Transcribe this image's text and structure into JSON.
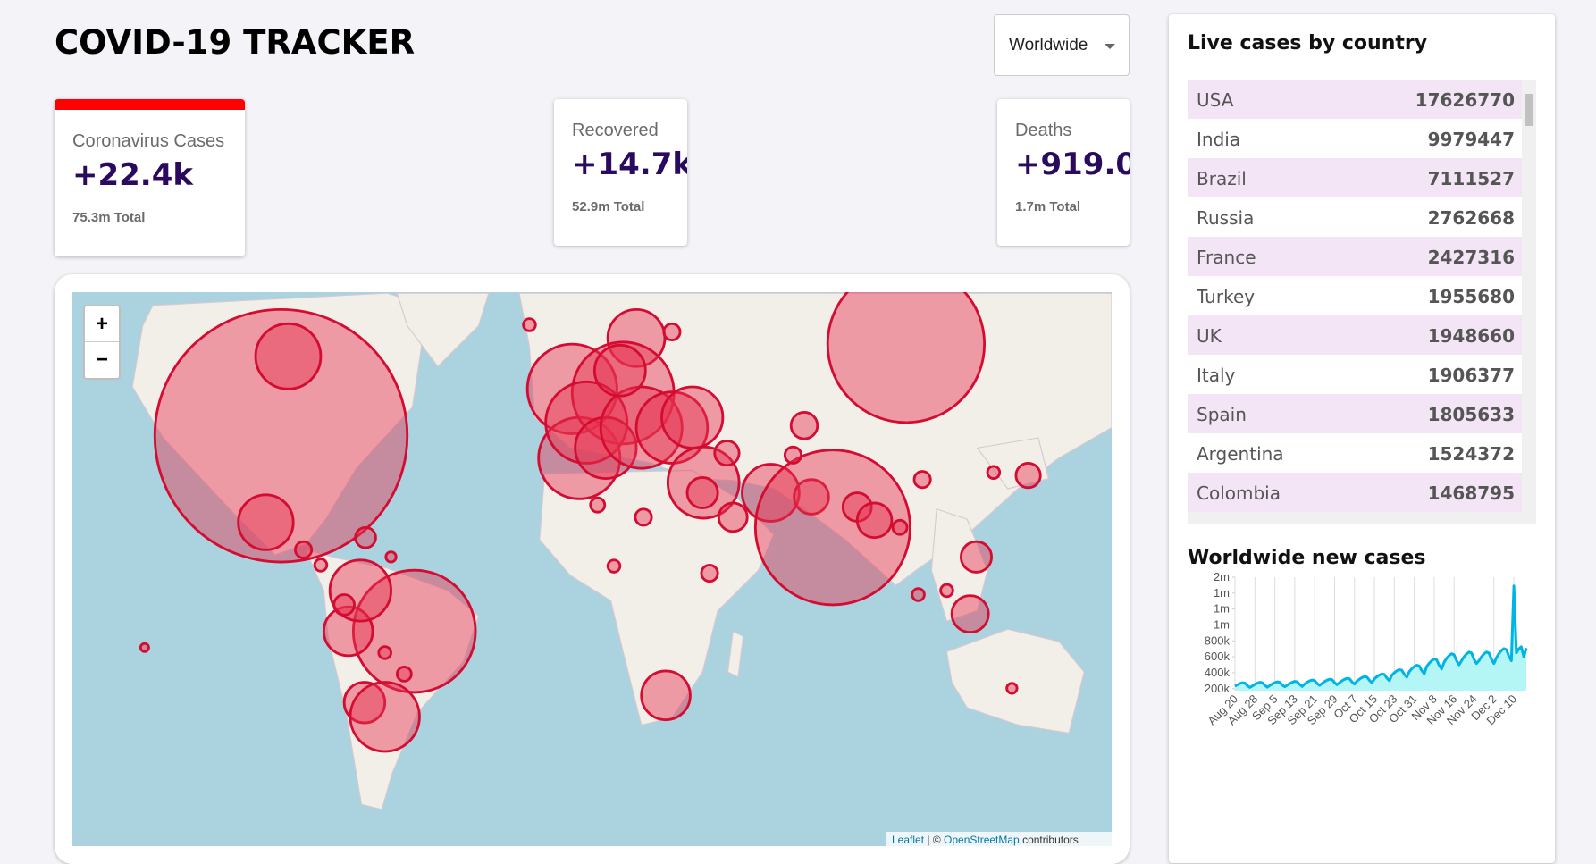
{
  "header": {
    "title": "COVID-19 TRACKER",
    "selector": "Worldwide"
  },
  "cards": [
    {
      "label": "Coronavirus Cases",
      "value": "+22.4k",
      "total": "75.3m Total"
    },
    {
      "label": "Recovered",
      "value": "+14.7k",
      "total": "52.9m Total"
    },
    {
      "label": "Deaths",
      "value": "+919.0",
      "total": "1.7m Total"
    }
  ],
  "map": {
    "zoom_in": "+",
    "zoom_out": "−",
    "attribution": {
      "leaflet": "Leaflet",
      "separator": "| ©",
      "osm": "OpenStreetMap",
      "suffix": "contributors"
    }
  },
  "table": {
    "title": "Live cases by country",
    "rows": [
      [
        "USA",
        17626770
      ],
      [
        "India",
        9979447
      ],
      [
        "Brazil",
        7111527
      ],
      [
        "Russia",
        2762668
      ],
      [
        "France",
        2427316
      ],
      [
        "Turkey",
        1955680
      ],
      [
        "UK",
        1948660
      ],
      [
        "Italy",
        1906377
      ],
      [
        "Spain",
        1805633
      ],
      [
        "Argentina",
        1524372
      ],
      [
        "Colombia",
        1468795
      ]
    ]
  },
  "chart_data": {
    "type": "line",
    "title": "Worldwide new cases",
    "color": "#00b4e6",
    "fill": "#b4f5f5",
    "grid": true,
    "categories": [
      "Aug 20",
      null,
      null,
      null,
      null,
      null,
      null,
      null,
      "Aug 28",
      null,
      null,
      null,
      null,
      null,
      null,
      null,
      "Sep 5",
      null,
      null,
      null,
      null,
      null,
      null,
      null,
      "Sep 13",
      null,
      null,
      null,
      null,
      null,
      null,
      null,
      "Sep 21",
      null,
      null,
      null,
      null,
      null,
      null,
      null,
      "Sep 29",
      null,
      null,
      null,
      null,
      null,
      null,
      null,
      "Oct 7",
      null,
      null,
      null,
      null,
      null,
      null,
      null,
      "Oct 15",
      null,
      null,
      null,
      null,
      null,
      null,
      null,
      "Oct 23",
      null,
      null,
      null,
      null,
      null,
      null,
      null,
      "Oct 31",
      null,
      null,
      null,
      null,
      null,
      null,
      null,
      "Nov 8",
      null,
      null,
      null,
      null,
      null,
      null,
      null,
      "Nov 16",
      null,
      null,
      null,
      null,
      null,
      null,
      null,
      "Nov 24",
      null,
      null,
      null,
      null,
      null,
      null,
      null,
      "Dec 2",
      null,
      null,
      null,
      null,
      null,
      null,
      null,
      "Dec 10",
      null,
      null,
      null,
      null,
      null
    ],
    "values": [
      230000,
      250000,
      265000,
      275000,
      270000,
      238000,
      215000,
      235000,
      255000,
      270000,
      281000,
      275000,
      242000,
      219000,
      239000,
      260000,
      276000,
      286000,
      281000,
      247000,
      224000,
      244000,
      265000,
      281000,
      292000,
      286000,
      252000,
      228000,
      258000,
      280000,
      297000,
      308000,
      302000,
      266000,
      241000,
      267000,
      290000,
      307000,
      319000,
      313000,
      276000,
      249000,
      276000,
      300000,
      318000,
      330000,
      324000,
      285000,
      258000,
      294000,
      320000,
      339000,
      352000,
      346000,
      304000,
      275000,
      322000,
      350000,
      371000,
      385000,
      378000,
      333000,
      301000,
      368000,
      400000,
      424000,
      440000,
      432000,
      380000,
      344000,
      414000,
      450000,
      477000,
      495000,
      486000,
      428000,
      387000,
      478000,
      520000,
      551000,
      572000,
      562000,
      494000,
      447000,
      534000,
      580000,
      615000,
      638000,
      626000,
      551000,
      499000,
      552000,
      600000,
      636000,
      660000,
      648000,
      570000,
      516000,
      552000,
      600000,
      636000,
      660000,
      648000,
      570000,
      516000,
      589000,
      640000,
      678000,
      704000,
      691000,
      608000,
      550000,
      1490000,
      650000,
      700000,
      726000,
      600000,
      710000
    ],
    "ylim": [
      175000,
      1600000
    ],
    "yticks": [
      {
        "value": 200000,
        "label": "200k"
      },
      {
        "value": 400000,
        "label": "400k"
      },
      {
        "value": 600000,
        "label": "600k"
      },
      {
        "value": 800000,
        "label": "800k"
      },
      {
        "value": 1000000,
        "label": "1m"
      },
      {
        "value": 1200000,
        "label": "1m"
      },
      {
        "value": 1400000,
        "label": "1m"
      },
      {
        "value": 1600000,
        "label": "2m"
      }
    ]
  }
}
